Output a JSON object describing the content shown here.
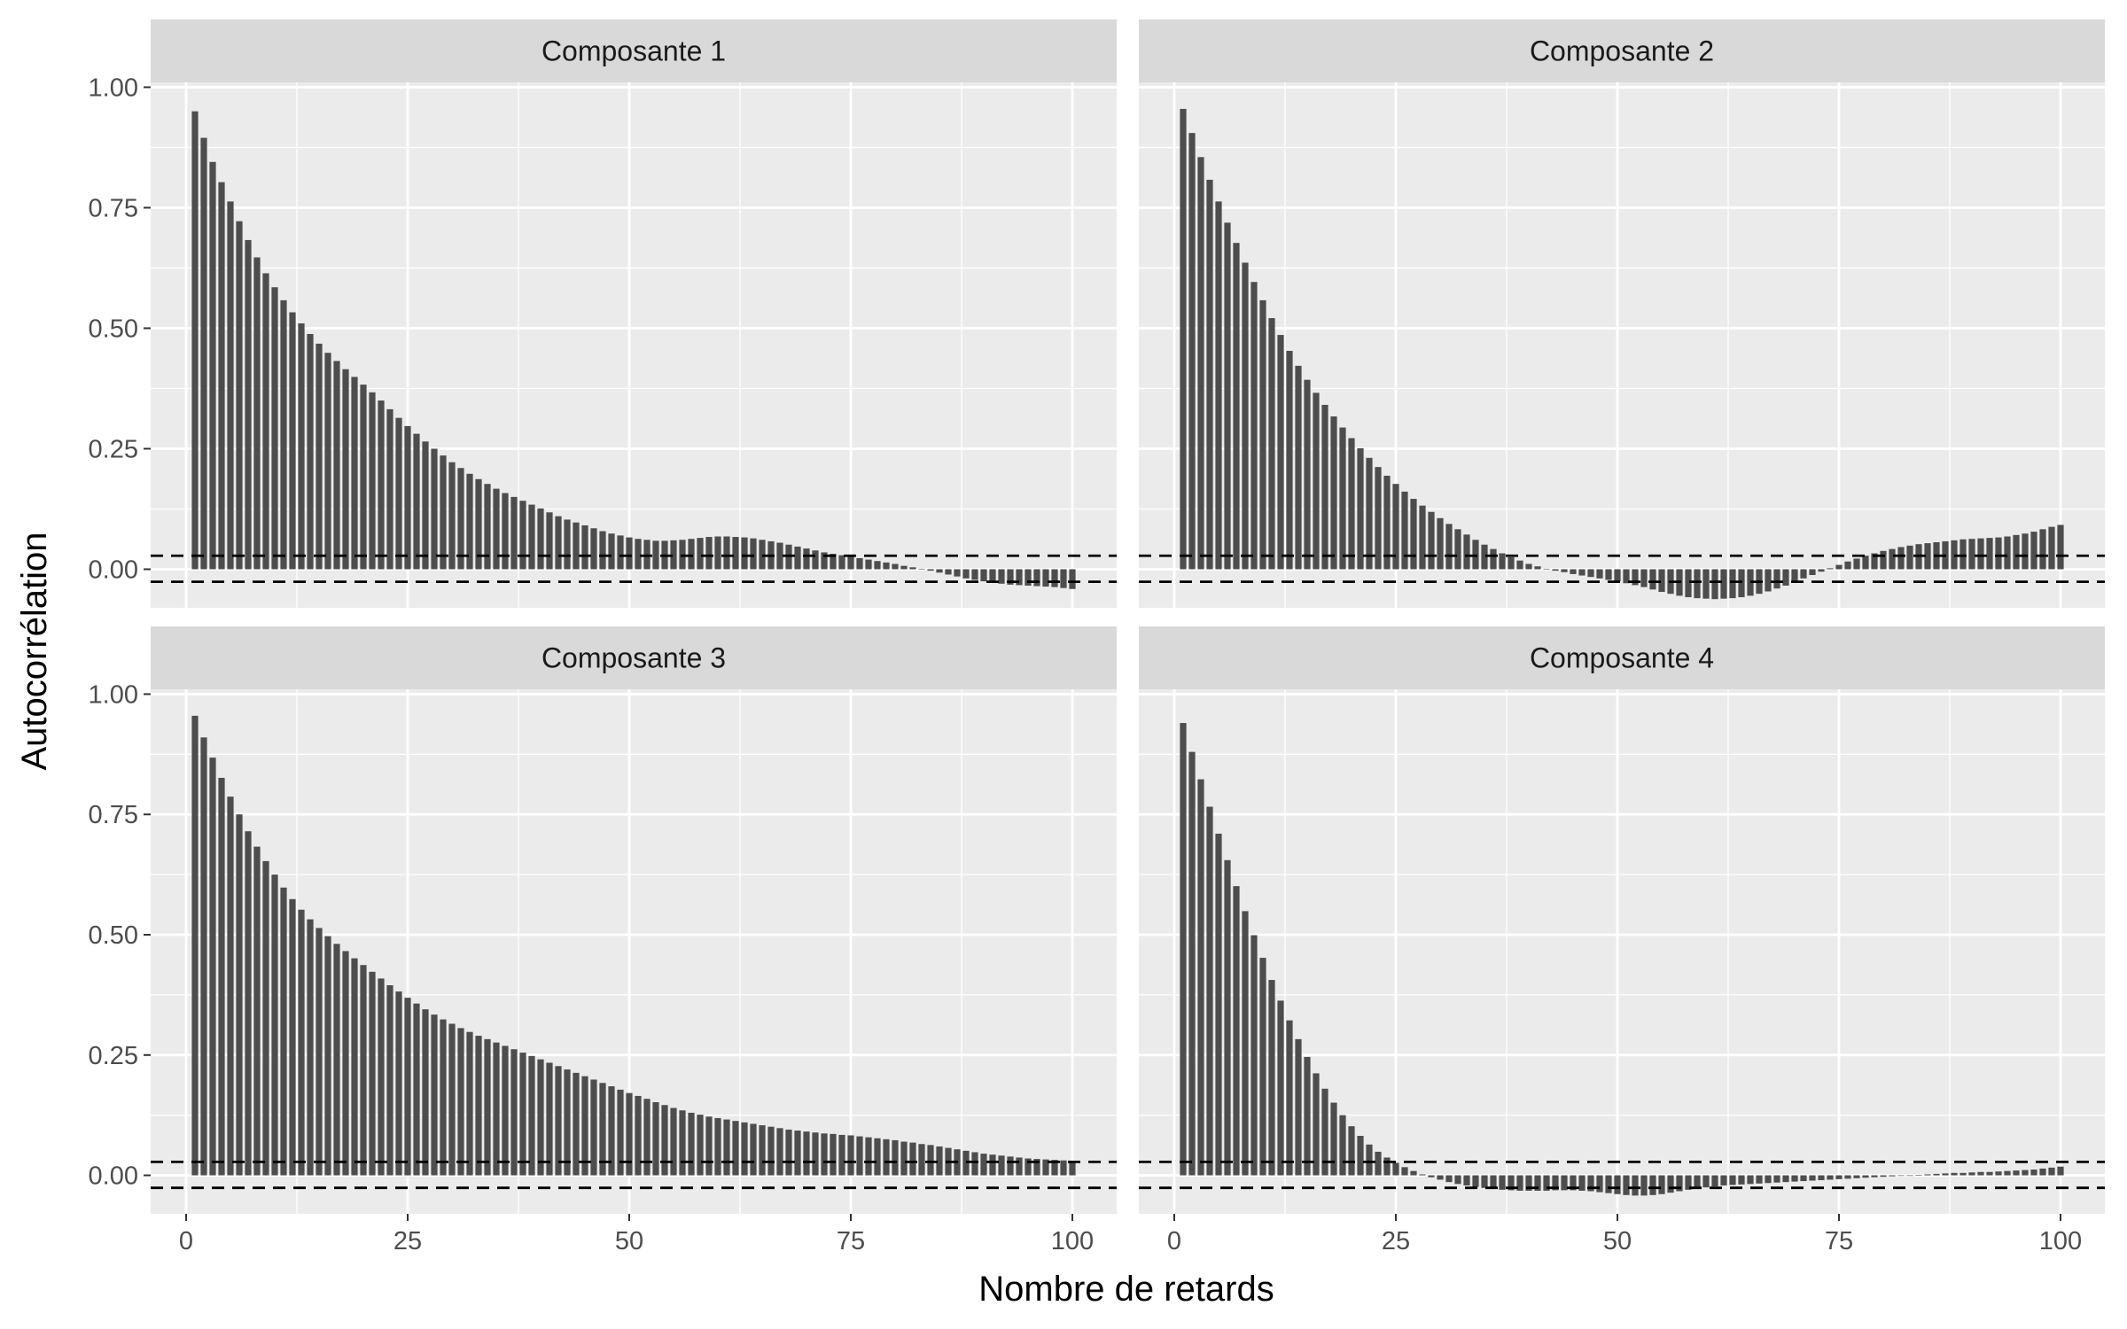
{
  "chart_data": {
    "type": "bar",
    "facets": [
      "Composante 1",
      "Composante 2",
      "Composante 3",
      "Composante 4"
    ],
    "xlabel": "Nombre de retards",
    "ylabel": "Autocorrélation",
    "x_ticks": [
      "0",
      "25",
      "50",
      "75",
      "100"
    ],
    "y_ticks": [
      "0.00",
      "0.25",
      "0.50",
      "0.75",
      "1.00"
    ],
    "xlim": [
      -4,
      105
    ],
    "ylim": [
      -0.08,
      1.01
    ],
    "lags": "1-100",
    "confidence_bounds": [
      0.028,
      -0.026
    ],
    "grid": true,
    "series": [
      {
        "name": "Composante 1",
        "values": [
          0.95,
          0.895,
          0.845,
          0.803,
          0.763,
          0.722,
          0.683,
          0.647,
          0.614,
          0.585,
          0.558,
          0.533,
          0.51,
          0.488,
          0.468,
          0.449,
          0.432,
          0.415,
          0.399,
          0.383,
          0.367,
          0.35,
          0.332,
          0.314,
          0.297,
          0.281,
          0.265,
          0.25,
          0.236,
          0.222,
          0.21,
          0.198,
          0.187,
          0.177,
          0.167,
          0.158,
          0.15,
          0.142,
          0.134,
          0.126,
          0.118,
          0.11,
          0.103,
          0.097,
          0.091,
          0.085,
          0.079,
          0.074,
          0.07,
          0.066,
          0.063,
          0.061,
          0.059,
          0.059,
          0.06,
          0.061,
          0.063,
          0.065,
          0.067,
          0.068,
          0.068,
          0.067,
          0.066,
          0.064,
          0.061,
          0.058,
          0.055,
          0.051,
          0.047,
          0.043,
          0.039,
          0.035,
          0.032,
          0.029,
          0.026,
          0.023,
          0.02,
          0.017,
          0.014,
          0.011,
          0.007,
          0.004,
          0.001,
          -0.003,
          -0.007,
          -0.011,
          -0.015,
          -0.019,
          -0.022,
          -0.025,
          -0.028,
          -0.03,
          -0.032,
          -0.033,
          -0.034,
          -0.035,
          -0.036,
          -0.037,
          -0.039,
          -0.041
        ]
      },
      {
        "name": "Composante 2",
        "values": [
          0.955,
          0.905,
          0.855,
          0.808,
          0.763,
          0.719,
          0.677,
          0.636,
          0.596,
          0.558,
          0.521,
          0.486,
          0.453,
          0.422,
          0.393,
          0.366,
          0.341,
          0.317,
          0.294,
          0.272,
          0.251,
          0.231,
          0.212,
          0.194,
          0.177,
          0.161,
          0.146,
          0.132,
          0.119,
          0.106,
          0.094,
          0.083,
          0.072,
          0.061,
          0.051,
          0.042,
          0.033,
          0.025,
          0.018,
          0.011,
          0.006,
          0.001,
          -0.003,
          -0.006,
          -0.01,
          -0.013,
          -0.016,
          -0.019,
          -0.022,
          -0.025,
          -0.029,
          -0.033,
          -0.037,
          -0.042,
          -0.047,
          -0.051,
          -0.055,
          -0.058,
          -0.06,
          -0.061,
          -0.062,
          -0.061,
          -0.06,
          -0.058,
          -0.055,
          -0.051,
          -0.046,
          -0.04,
          -0.034,
          -0.027,
          -0.019,
          -0.012,
          -0.005,
          0.002,
          0.009,
          0.016,
          0.022,
          0.028,
          0.033,
          0.038,
          0.042,
          0.046,
          0.049,
          0.052,
          0.054,
          0.056,
          0.058,
          0.06,
          0.062,
          0.063,
          0.064,
          0.065,
          0.066,
          0.068,
          0.071,
          0.074,
          0.078,
          0.083,
          0.088,
          0.092
        ]
      },
      {
        "name": "Composante 3",
        "values": [
          0.955,
          0.91,
          0.868,
          0.826,
          0.787,
          0.75,
          0.715,
          0.683,
          0.653,
          0.625,
          0.598,
          0.574,
          0.552,
          0.532,
          0.514,
          0.497,
          0.481,
          0.466,
          0.451,
          0.437,
          0.423,
          0.409,
          0.395,
          0.382,
          0.369,
          0.357,
          0.345,
          0.334,
          0.324,
          0.315,
          0.306,
          0.298,
          0.29,
          0.283,
          0.276,
          0.269,
          0.262,
          0.255,
          0.248,
          0.241,
          0.234,
          0.227,
          0.22,
          0.213,
          0.206,
          0.199,
          0.192,
          0.185,
          0.178,
          0.171,
          0.165,
          0.159,
          0.152,
          0.146,
          0.14,
          0.135,
          0.13,
          0.126,
          0.122,
          0.119,
          0.116,
          0.113,
          0.11,
          0.107,
          0.104,
          0.101,
          0.098,
          0.095,
          0.093,
          0.091,
          0.089,
          0.087,
          0.086,
          0.084,
          0.083,
          0.081,
          0.079,
          0.077,
          0.075,
          0.073,
          0.07,
          0.068,
          0.065,
          0.063,
          0.06,
          0.057,
          0.054,
          0.051,
          0.048,
          0.045,
          0.043,
          0.041,
          0.039,
          0.037,
          0.035,
          0.034,
          0.033,
          0.032,
          0.031,
          0.03
        ]
      },
      {
        "name": "Composante 4",
        "values": [
          0.94,
          0.88,
          0.823,
          0.766,
          0.71,
          0.655,
          0.601,
          0.549,
          0.499,
          0.452,
          0.406,
          0.363,
          0.322,
          0.283,
          0.246,
          0.212,
          0.18,
          0.151,
          0.125,
          0.102,
          0.082,
          0.064,
          0.049,
          0.037,
          0.026,
          0.017,
          0.009,
          0.002,
          -0.004,
          -0.009,
          -0.014,
          -0.018,
          -0.021,
          -0.024,
          -0.026,
          -0.028,
          -0.03,
          -0.031,
          -0.032,
          -0.032,
          -0.032,
          -0.032,
          -0.031,
          -0.031,
          -0.031,
          -0.032,
          -0.033,
          -0.035,
          -0.037,
          -0.039,
          -0.041,
          -0.042,
          -0.042,
          -0.041,
          -0.039,
          -0.036,
          -0.033,
          -0.03,
          -0.027,
          -0.025,
          -0.023,
          -0.021,
          -0.02,
          -0.019,
          -0.018,
          -0.017,
          -0.016,
          -0.015,
          -0.014,
          -0.013,
          -0.012,
          -0.011,
          -0.01,
          -0.009,
          -0.008,
          -0.007,
          -0.006,
          -0.005,
          -0.004,
          -0.003,
          -0.002,
          -0.001,
          0,
          0.001,
          0.002,
          0.003,
          0.004,
          0.005,
          0.005,
          0.006,
          0.007,
          0.007,
          0.008,
          0.009,
          0.01,
          0.011,
          0.012,
          0.014,
          0.016,
          0.018
        ]
      }
    ]
  }
}
